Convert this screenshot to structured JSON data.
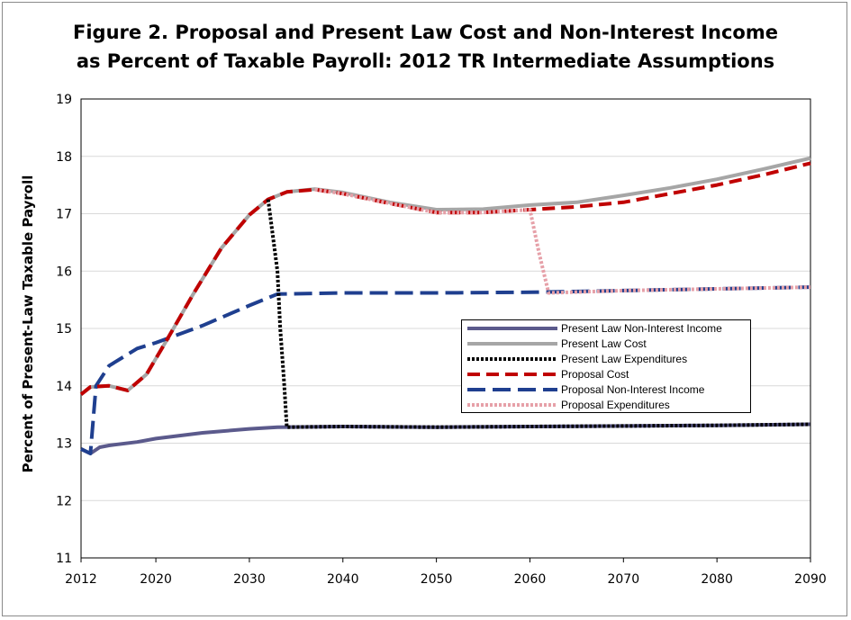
{
  "chart_data": {
    "type": "line",
    "title": "Figure 2.  Proposal and Present Law Cost and Non-Interest Income as Percent of Taxable Payroll: 2012 TR Intermediate Assumptions",
    "title_lines": [
      "Figure 2.  Proposal and Present Law Cost and Non-Interest Income",
      "as Percent of Taxable Payroll: 2012 TR Intermediate Assumptions"
    ],
    "xlabel": "",
    "ylabel": "Percent of Present-Law Taxable Payroll",
    "xlim": [
      2012,
      2090
    ],
    "ylim": [
      11,
      19
    ],
    "x_ticks": [
      "2012",
      "2020",
      "2030",
      "2040",
      "2050",
      "2060",
      "2070",
      "2080",
      "2090"
    ],
    "x_tick_values": [
      2012,
      2020,
      2030,
      2040,
      2050,
      2060,
      2070,
      2080,
      2090
    ],
    "y_ticks": [
      "11",
      "12",
      "13",
      "14",
      "15",
      "16",
      "17",
      "18",
      "19"
    ],
    "grid": "horizontal",
    "legend_position": "center-right",
    "series": [
      {
        "name": "Present Law Non-Interest Income",
        "color": "#5b5a8c",
        "style": "solid",
        "x": [
          2012,
          2013,
          2014,
          2015,
          2018,
          2020,
          2025,
          2030,
          2033,
          2040,
          2050,
          2060,
          2070,
          2080,
          2090
        ],
        "values": [
          12.9,
          12.82,
          12.93,
          12.96,
          13.02,
          13.08,
          13.18,
          13.25,
          13.28,
          13.29,
          13.28,
          13.29,
          13.3,
          13.31,
          13.33
        ]
      },
      {
        "name": "Present Law Cost",
        "color": "#a6a6a6",
        "style": "solid",
        "x": [
          2012,
          2013,
          2015,
          2017,
          2019,
          2021,
          2024,
          2027,
          2030,
          2032,
          2034,
          2037,
          2040,
          2045,
          2050,
          2055,
          2060,
          2065,
          2070,
          2075,
          2080,
          2085,
          2090
        ],
        "values": [
          13.85,
          13.98,
          14.0,
          13.92,
          14.2,
          14.75,
          15.6,
          16.4,
          16.98,
          17.25,
          17.38,
          17.43,
          17.37,
          17.2,
          17.07,
          17.08,
          17.15,
          17.2,
          17.32,
          17.45,
          17.6,
          17.78,
          17.97
        ]
      },
      {
        "name": "Present Law Expenditures",
        "color": "#000000",
        "style": "dotted",
        "x": [
          2032,
          2033,
          2033.3,
          2033.7,
          2034,
          2040,
          2050,
          2060,
          2070,
          2080,
          2090
        ],
        "values": [
          17.25,
          16.0,
          15.0,
          14.1,
          13.28,
          13.29,
          13.28,
          13.29,
          13.3,
          13.31,
          13.33
        ]
      },
      {
        "name": "Proposal Cost",
        "color": "#c00000",
        "style": "dashed",
        "x": [
          2012,
          2013,
          2015,
          2017,
          2019,
          2021,
          2024,
          2027,
          2030,
          2032,
          2034,
          2037,
          2040,
          2045,
          2050,
          2055,
          2060,
          2065,
          2070,
          2075,
          2080,
          2085,
          2090
        ],
        "values": [
          13.85,
          13.98,
          14.0,
          13.92,
          14.2,
          14.75,
          15.6,
          16.4,
          16.98,
          17.25,
          17.38,
          17.42,
          17.35,
          17.18,
          17.02,
          17.02,
          17.07,
          17.12,
          17.2,
          17.35,
          17.5,
          17.68,
          17.88
        ]
      },
      {
        "name": "Proposal Non-Interest Income",
        "color": "#1f3f8f",
        "style": "dashed",
        "x": [
          2012,
          2013,
          2013.6,
          2015,
          2018,
          2020,
          2025,
          2030,
          2033,
          2040,
          2050,
          2060,
          2070,
          2080,
          2090
        ],
        "values": [
          12.9,
          12.82,
          14.0,
          14.35,
          14.65,
          14.75,
          15.05,
          15.4,
          15.6,
          15.62,
          15.62,
          15.63,
          15.66,
          15.69,
          15.72
        ]
      },
      {
        "name": "Proposal Expenditures",
        "color": "#e6a0a8",
        "style": "dotted",
        "x": [
          2037,
          2040,
          2045,
          2050,
          2055,
          2060,
          2061,
          2062,
          2070,
          2080,
          2090
        ],
        "values": [
          17.42,
          17.35,
          17.18,
          17.02,
          17.02,
          17.07,
          16.3,
          15.62,
          15.66,
          15.69,
          15.72
        ]
      }
    ]
  }
}
